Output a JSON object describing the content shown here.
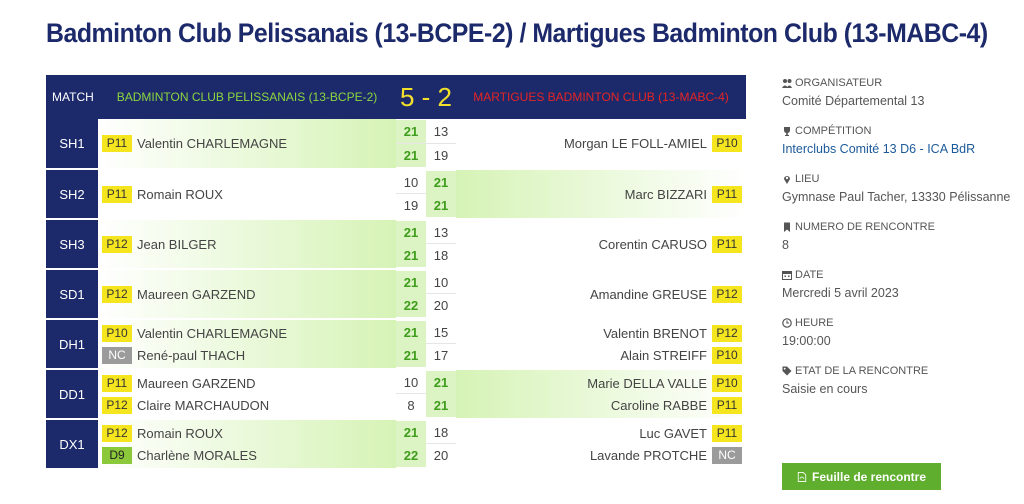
{
  "title": "Badminton Club Pelissanais (13-BCPE-2) / Martigues Badminton Club (13-MABC-4)",
  "header": {
    "match_label": "MATCH",
    "home_team": "BADMINTON CLUB PELISSANAIS (13-BCPE-2)",
    "score": "5 - 2",
    "away_team": "MARTIGUES BADMINTON CLUB (13-MABC-4)"
  },
  "matches": [
    {
      "type": "SH1",
      "winner": "home",
      "home": [
        {
          "rank": "P11",
          "name": "Valentin CHARLEMAGNE"
        }
      ],
      "away": [
        {
          "rank": "P10",
          "name": "Morgan LE FOLL-AMIEL"
        }
      ],
      "sets": [
        {
          "h": "21",
          "a": "13"
        },
        {
          "h": "21",
          "a": "19"
        }
      ]
    },
    {
      "type": "SH2",
      "winner": "away",
      "home": [
        {
          "rank": "P11",
          "name": "Romain ROUX"
        }
      ],
      "away": [
        {
          "rank": "P11",
          "name": "Marc BIZZARI"
        }
      ],
      "sets": [
        {
          "h": "10",
          "a": "21"
        },
        {
          "h": "19",
          "a": "21"
        }
      ]
    },
    {
      "type": "SH3",
      "winner": "home",
      "home": [
        {
          "rank": "P12",
          "name": "Jean BILGER"
        }
      ],
      "away": [
        {
          "rank": "P11",
          "name": "Corentin CARUSO"
        }
      ],
      "sets": [
        {
          "h": "21",
          "a": "13"
        },
        {
          "h": "21",
          "a": "18"
        }
      ]
    },
    {
      "type": "SD1",
      "winner": "home",
      "home": [
        {
          "rank": "P12",
          "name": "Maureen GARZEND"
        }
      ],
      "away": [
        {
          "rank": "P12",
          "name": "Amandine GREUSE"
        }
      ],
      "sets": [
        {
          "h": "21",
          "a": "10"
        },
        {
          "h": "22",
          "a": "20"
        }
      ]
    },
    {
      "type": "DH1",
      "winner": "home",
      "home": [
        {
          "rank": "P10",
          "name": "Valentin CHARLEMAGNE"
        },
        {
          "rank": "NC",
          "name": "René-paul THACH"
        }
      ],
      "away": [
        {
          "rank": "P12",
          "name": "Valentin BRENOT"
        },
        {
          "rank": "P10",
          "name": "Alain STREIFF"
        }
      ],
      "sets": [
        {
          "h": "21",
          "a": "15"
        },
        {
          "h": "21",
          "a": "17"
        }
      ]
    },
    {
      "type": "DD1",
      "winner": "away",
      "home": [
        {
          "rank": "P11",
          "name": "Maureen GARZEND"
        },
        {
          "rank": "P12",
          "name": "Claire MARCHAUDON"
        }
      ],
      "away": [
        {
          "rank": "P10",
          "name": "Marie DELLA VALLE"
        },
        {
          "rank": "P11",
          "name": "Caroline RABBE"
        }
      ],
      "sets": [
        {
          "h": "10",
          "a": "21"
        },
        {
          "h": "8",
          "a": "21"
        }
      ]
    },
    {
      "type": "DX1",
      "winner": "home",
      "home": [
        {
          "rank": "P12",
          "name": "Romain ROUX"
        },
        {
          "rank": "D9",
          "name": "Charlène MORALES"
        }
      ],
      "away": [
        {
          "rank": "P11",
          "name": "Luc GAVET"
        },
        {
          "rank": "NC",
          "name": "Lavande PROTCHE"
        }
      ],
      "sets": [
        {
          "h": "21",
          "a": "18"
        },
        {
          "h": "22",
          "a": "20"
        }
      ]
    }
  ],
  "info": [
    {
      "icon": "users-icon",
      "label": "ORGANISATEUR",
      "value": "Comité Départemental 13",
      "link": false
    },
    {
      "icon": "trophy-icon",
      "label": "COMPÉTITION",
      "value": "Interclubs Comité 13 D6 - ICA BdR",
      "link": true
    },
    {
      "icon": "map-marker-icon",
      "label": "LIEU",
      "value": "Gymnase Paul Tacher, 13330 Pélissanne",
      "link": false
    },
    {
      "icon": "bookmark-icon",
      "label": "NUMERO DE RENCONTRE",
      "value": "8",
      "link": false
    },
    {
      "icon": "calendar-icon",
      "label": "DATE",
      "value": "Mercredi 5 avril 2023",
      "link": false
    },
    {
      "icon": "clock-icon",
      "label": "HEURE",
      "value": "19:00:00",
      "link": false
    },
    {
      "icon": "tag-icon",
      "label": "ETAT DE LA RENCONTRE",
      "value": "Saisie en cours",
      "link": false
    }
  ],
  "sheet_button": {
    "label": "Feuille de rencontre",
    "icon": "pdf-icon"
  },
  "colors": {
    "navy": "#1c2a6b",
    "home": "#8bd540",
    "away": "#e52424",
    "score": "#f2e02a",
    "rank": "#f5e51f",
    "win_bg": "#d6f3b6",
    "button": "#5fae2d"
  }
}
